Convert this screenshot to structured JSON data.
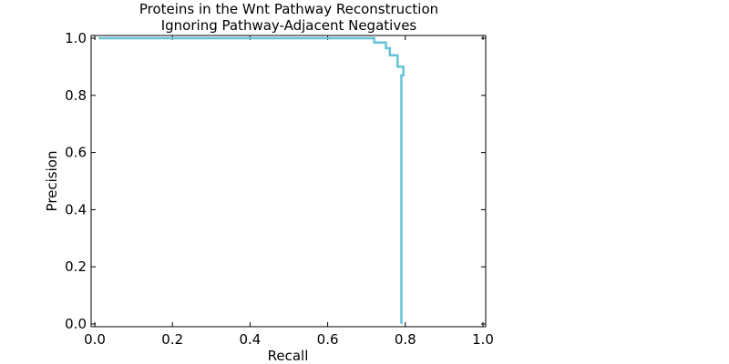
{
  "chart_data": {
    "type": "line",
    "title": "Proteins in the Wnt Pathway Reconstruction",
    "subtitle": "Ignoring Pathway-Adjacent Negatives",
    "xlabel": "Recall",
    "ylabel": "Precision",
    "xlim": [
      0.0,
      1.0
    ],
    "ylim": [
      0.0,
      1.0
    ],
    "xticks": [
      "0.0",
      "0.2",
      "0.4",
      "0.6",
      "0.8",
      "1.0"
    ],
    "yticks": [
      "0.0",
      "0.2",
      "0.4",
      "0.6",
      "0.8",
      "1.0"
    ],
    "grid": false,
    "legend": null,
    "series": [
      {
        "color": "#66c2d7",
        "x": [
          0.01,
          0.72,
          0.72,
          0.75,
          0.75,
          0.76,
          0.76,
          0.77,
          0.77,
          0.78,
          0.78,
          0.795,
          0.795,
          0.79,
          0.79
        ],
        "y": [
          1.0,
          1.0,
          0.985,
          0.985,
          0.965,
          0.965,
          0.94,
          0.94,
          0.94,
          0.94,
          0.9,
          0.9,
          0.87,
          0.87,
          0.0
        ]
      }
    ]
  }
}
